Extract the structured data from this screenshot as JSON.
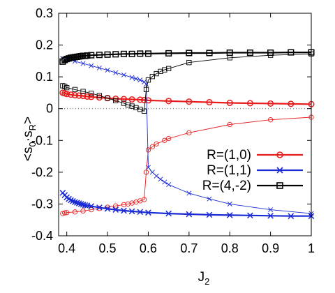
{
  "chart_data": {
    "type": "scatter",
    "xlabel": "J",
    "xlabel_sub": "2",
    "ylabel_parts": [
      "<s",
      "0",
      "·s",
      "R",
      ">"
    ],
    "xlim": [
      0.38,
      1.0
    ],
    "ylim": [
      -0.4,
      0.3
    ],
    "x_ticks": [
      0.4,
      0.5,
      0.6,
      0.7,
      0.8,
      0.9,
      1.0
    ],
    "x_tick_labels": [
      "0.4",
      "0.5",
      "0.6",
      "0.7",
      "0.8",
      "0.9",
      "1"
    ],
    "y_ticks": [
      -0.4,
      -0.3,
      -0.2,
      -0.1,
      0,
      0.1,
      0.2,
      0.3
    ],
    "y_tick_labels": [
      "-0.4",
      "-0.3",
      "-0.2",
      "-0.1",
      "0",
      "0.1",
      "0.2",
      "0.3"
    ],
    "zero_line": true,
    "legend_position": "lower-right",
    "series": [
      {
        "name": "R=(1,0)",
        "color": "#e81c1c",
        "marker": "circle",
        "thick": {
          "x": [
            0.39,
            0.395,
            0.4,
            0.41,
            0.42,
            0.43,
            0.44,
            0.45,
            0.46,
            0.48,
            0.5,
            0.52,
            0.54,
            0.56,
            0.58,
            0.59,
            0.6,
            0.65,
            0.7,
            0.75,
            0.8,
            0.85,
            0.9,
            0.95,
            1.0
          ],
          "y": [
            0.05,
            0.048,
            0.046,
            0.044,
            0.042,
            0.041,
            0.04,
            0.038,
            0.037,
            0.035,
            0.033,
            0.031,
            0.03,
            0.029,
            0.028,
            0.027,
            0.026,
            0.024,
            0.022,
            0.02,
            0.018,
            0.017,
            0.016,
            0.015,
            0.014
          ]
        },
        "thin": {
          "x": [
            0.39,
            0.395,
            0.4,
            0.42,
            0.44,
            0.46,
            0.48,
            0.5,
            0.52,
            0.54,
            0.55,
            0.56,
            0.57,
            0.58,
            0.59,
            0.595,
            0.6,
            0.61,
            0.62,
            0.64,
            0.65,
            0.7,
            0.8,
            0.9,
            1.0
          ],
          "y": [
            -0.33,
            -0.328,
            -0.327,
            -0.325,
            -0.322,
            -0.318,
            -0.314,
            -0.31,
            -0.306,
            -0.302,
            -0.3,
            -0.297,
            -0.294,
            -0.29,
            -0.286,
            -0.2,
            -0.13,
            -0.12,
            -0.111,
            -0.1,
            -0.094,
            -0.076,
            -0.05,
            -0.035,
            -0.027
          ]
        }
      },
      {
        "name": "R=(1,1)",
        "color": "#1a2bd6",
        "marker": "cross",
        "thick": {
          "x": [
            0.39,
            0.395,
            0.4,
            0.405,
            0.41,
            0.415,
            0.42,
            0.425,
            0.43,
            0.435,
            0.44,
            0.445,
            0.45,
            0.46,
            0.48,
            0.5,
            0.52,
            0.54,
            0.56,
            0.58,
            0.6,
            0.65,
            0.7,
            0.75,
            0.8,
            0.85,
            0.9,
            0.95,
            1.0
          ],
          "y": [
            -0.265,
            -0.272,
            -0.279,
            -0.284,
            -0.288,
            -0.291,
            -0.294,
            -0.296,
            -0.298,
            -0.3,
            -0.302,
            -0.304,
            -0.305,
            -0.307,
            -0.311,
            -0.315,
            -0.318,
            -0.321,
            -0.323,
            -0.325,
            -0.327,
            -0.33,
            -0.332,
            -0.334,
            -0.335,
            -0.336,
            -0.337,
            -0.338,
            -0.338
          ]
        },
        "thin": {
          "x": [
            0.39,
            0.4,
            0.42,
            0.44,
            0.46,
            0.48,
            0.5,
            0.52,
            0.54,
            0.56,
            0.57,
            0.58,
            0.59,
            0.595,
            0.6,
            0.61,
            0.62,
            0.63,
            0.64,
            0.65,
            0.7,
            0.75,
            0.8,
            0.9,
            1.0
          ],
          "y": [
            0.158,
            0.155,
            0.149,
            0.142,
            0.135,
            0.128,
            0.121,
            0.113,
            0.106,
            0.098,
            0.094,
            0.09,
            0.084,
            0.077,
            -0.185,
            -0.2,
            -0.212,
            -0.222,
            -0.231,
            -0.239,
            -0.266,
            -0.284,
            -0.3,
            -0.318,
            -0.33
          ]
        }
      },
      {
        "name": "R=(4,-2)",
        "color": "#000000",
        "marker": "square",
        "thick": {
          "x": [
            0.39,
            0.395,
            0.4,
            0.405,
            0.41,
            0.415,
            0.42,
            0.425,
            0.43,
            0.435,
            0.44,
            0.445,
            0.45,
            0.46,
            0.48,
            0.5,
            0.52,
            0.54,
            0.56,
            0.58,
            0.6,
            0.65,
            0.7,
            0.75,
            0.8,
            0.85,
            0.9,
            0.95,
            1.0
          ],
          "y": [
            0.148,
            0.153,
            0.156,
            0.158,
            0.16,
            0.161,
            0.162,
            0.163,
            0.164,
            0.165,
            0.166,
            0.166,
            0.167,
            0.168,
            0.169,
            0.17,
            0.171,
            0.172,
            0.172,
            0.173,
            0.173,
            0.174,
            0.175,
            0.175,
            0.176,
            0.176,
            0.176,
            0.177,
            0.177
          ]
        },
        "thin": {
          "x": [
            0.39,
            0.395,
            0.4,
            0.42,
            0.44,
            0.46,
            0.48,
            0.5,
            0.52,
            0.54,
            0.55,
            0.56,
            0.57,
            0.58,
            0.59,
            0.595,
            0.6,
            0.61,
            0.62,
            0.63,
            0.64,
            0.65,
            0.7,
            0.8,
            0.9,
            1.0
          ],
          "y": [
            0.072,
            0.07,
            0.066,
            0.06,
            0.054,
            0.048,
            0.041,
            0.033,
            0.025,
            0.017,
            0.012,
            0.008,
            0.003,
            -0.002,
            -0.008,
            0.06,
            0.09,
            0.101,
            0.11,
            0.117,
            0.122,
            0.126,
            0.145,
            0.16,
            0.168,
            0.172
          ]
        }
      }
    ]
  }
}
